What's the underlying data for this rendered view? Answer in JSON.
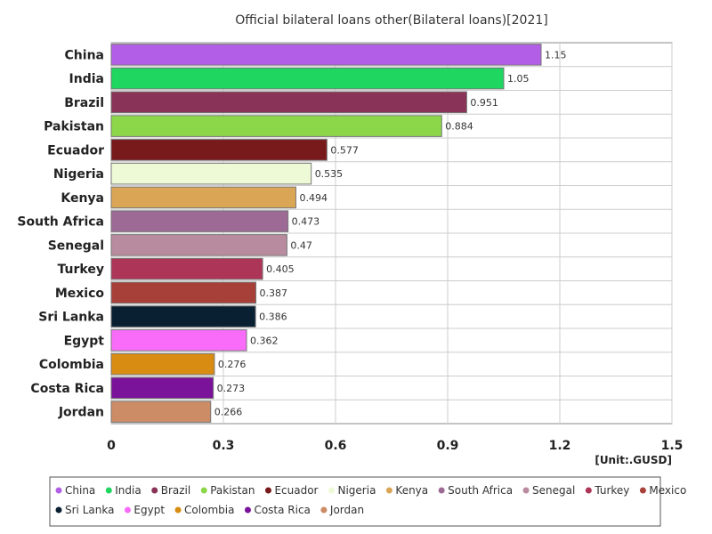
{
  "chart_data": {
    "type": "bar",
    "orientation": "horizontal",
    "title": "Official bilateral loans other(Bilateral loans)[2021]",
    "unit_label": "[Unit:.GUSD]",
    "categories": [
      "China",
      "India",
      "Brazil",
      "Pakistan",
      "Ecuador",
      "Nigeria",
      "Kenya",
      "South Africa",
      "Senegal",
      "Turkey",
      "Mexico",
      "Sri Lanka",
      "Egypt",
      "Colombia",
      "Costa Rica",
      "Jordan"
    ],
    "values": [
      1.15,
      1.05,
      0.951,
      0.884,
      0.577,
      0.535,
      0.494,
      0.473,
      0.47,
      0.405,
      0.387,
      0.386,
      0.362,
      0.276,
      0.273,
      0.266
    ],
    "value_labels": [
      "1.15",
      "1.05",
      "0.951",
      "0.884",
      "0.577",
      "0.535",
      "0.494",
      "0.473",
      "0.47",
      "0.405",
      "0.387",
      "0.386",
      "0.362",
      "0.276",
      "0.273",
      "0.266"
    ],
    "colors": [
      "#b25ee6",
      "#1ed660",
      "#8a3358",
      "#8cd64a",
      "#78191b",
      "#eefad6",
      "#dba556",
      "#9c6a94",
      "#b98b9f",
      "#ad3658",
      "#a8403a",
      "#092033",
      "#f96cf9",
      "#d98c12",
      "#7b139a",
      "#cc8c66"
    ],
    "xlim": [
      0,
      1.5
    ],
    "xticks": [
      0,
      0.3,
      0.6,
      0.9,
      1.2,
      1.5
    ],
    "xtick_labels": [
      "0",
      "0.3",
      "0.6",
      "0.9",
      "1.2",
      "1.5"
    ],
    "grid": true,
    "legend_position": "bottom"
  }
}
